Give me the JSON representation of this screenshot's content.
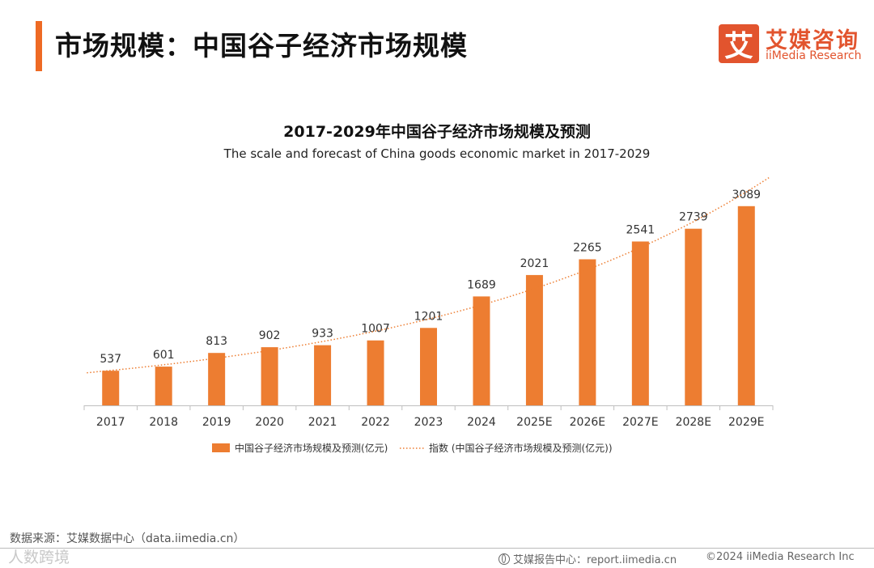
{
  "header": {
    "title": "市场规模：中国谷子经济市场规模",
    "logo_mark": "艾",
    "logo_cn": "艾媒咨询",
    "logo_en": "iiMedia Research"
  },
  "chart_data": {
    "type": "bar",
    "title": "2017-2029年中国谷子经济市场规模及预测",
    "subtitle": "The scale and forecast of China goods economic market in 2017-2029",
    "categories": [
      "2017",
      "2018",
      "2019",
      "2020",
      "2021",
      "2022",
      "2023",
      "2024",
      "2025E",
      "2026E",
      "2027E",
      "2028E",
      "2029E"
    ],
    "values": [
      537,
      601,
      813,
      902,
      933,
      1007,
      1201,
      1689,
      2021,
      2265,
      2541,
      2739,
      3089
    ],
    "series_name": "中国谷子经济市场规模及预测(亿元)",
    "trendline_name": "指数 (中国谷子经济市场规模及预测(亿元))",
    "xlabel": "",
    "ylabel": "",
    "ylim": [
      0,
      3400
    ],
    "grid": false,
    "legend": "bottom",
    "colors": {
      "bar": "#ed7d31",
      "trend": "#ed7d31",
      "axis": "#bfbfbf"
    }
  },
  "footer": {
    "source": "数据来源：艾媒数据中心（data.iimedia.cn）",
    "watermark": "人数跨境",
    "report": "艾媒报告中心：report.iimedia.cn",
    "copyright": "©2024  iiMedia Research Inc"
  }
}
